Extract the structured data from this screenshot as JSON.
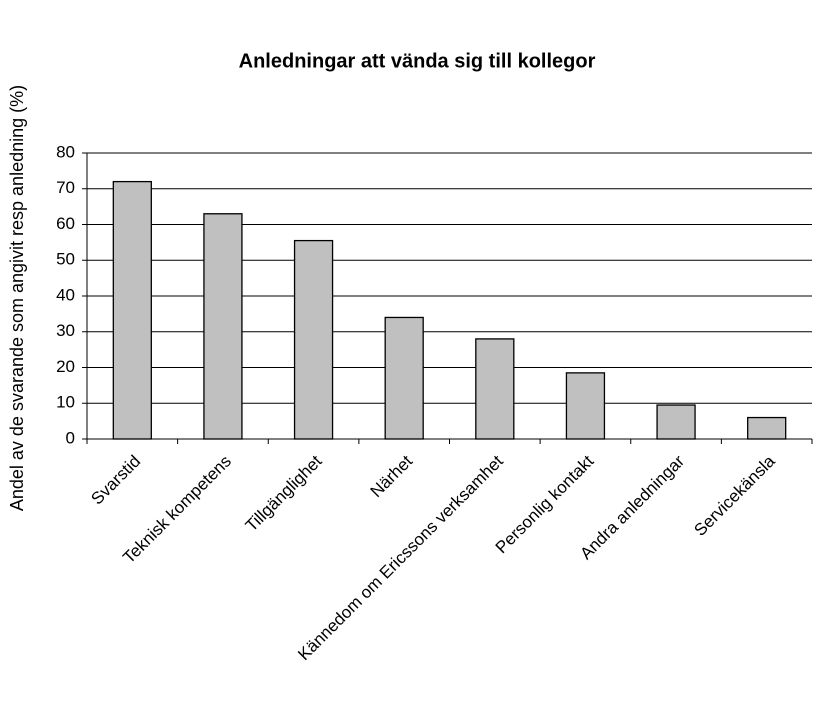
{
  "chart_data": {
    "type": "bar",
    "title": "Anledningar att vända sig till kollegor",
    "ylabel": "Andel av de svarande som angivit resp anledning (%)",
    "categories": [
      "Svarstid",
      "Teknisk kompetens",
      "Tillgänglighet",
      "Närhet",
      "Kännedom om Ericssons verksamhet",
      "Personlig kontakt",
      "Andra anledningar",
      "Servicekänsla"
    ],
    "values": [
      72,
      63,
      55.5,
      34,
      28,
      18.5,
      9.5,
      6
    ],
    "color": "#c0c0c0",
    "ylim": [
      0,
      80
    ],
    "yticks": [
      0,
      10,
      20,
      30,
      40,
      50,
      60,
      70,
      80
    ],
    "grid": true
  }
}
